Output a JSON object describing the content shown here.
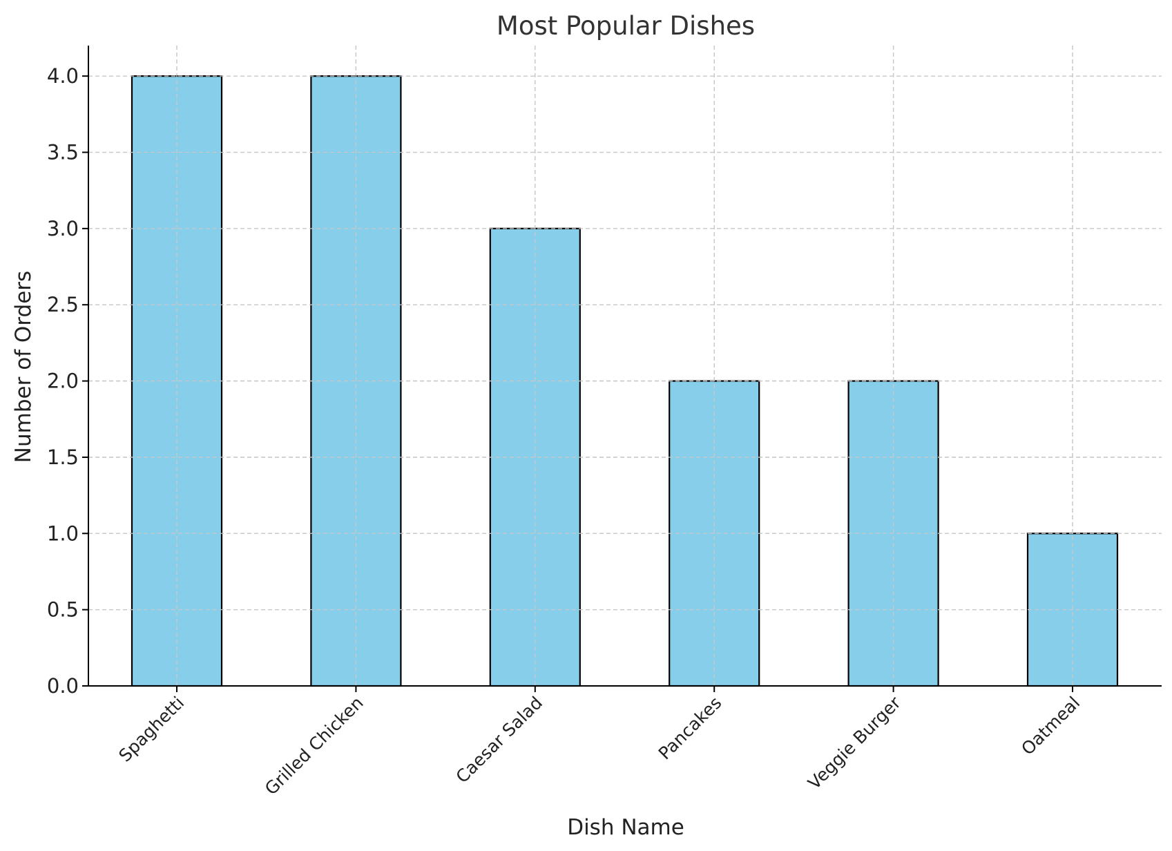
{
  "chart_data": {
    "type": "bar",
    "title": "Most Popular Dishes",
    "xlabel": "Dish Name",
    "ylabel": "Number of Orders",
    "categories": [
      "Spaghetti",
      "Grilled Chicken",
      "Caesar Salad",
      "Pancakes",
      "Veggie Burger",
      "Oatmeal"
    ],
    "values": [
      4,
      4,
      3,
      2,
      2,
      1
    ],
    "ylim": [
      0,
      4.2
    ],
    "yticks": [
      "0.0",
      "0.5",
      "1.0",
      "1.5",
      "2.0",
      "2.5",
      "3.0",
      "3.5",
      "4.0"
    ],
    "grid": true,
    "bar_color": "#87ceeb",
    "edge_color": "#000000"
  }
}
